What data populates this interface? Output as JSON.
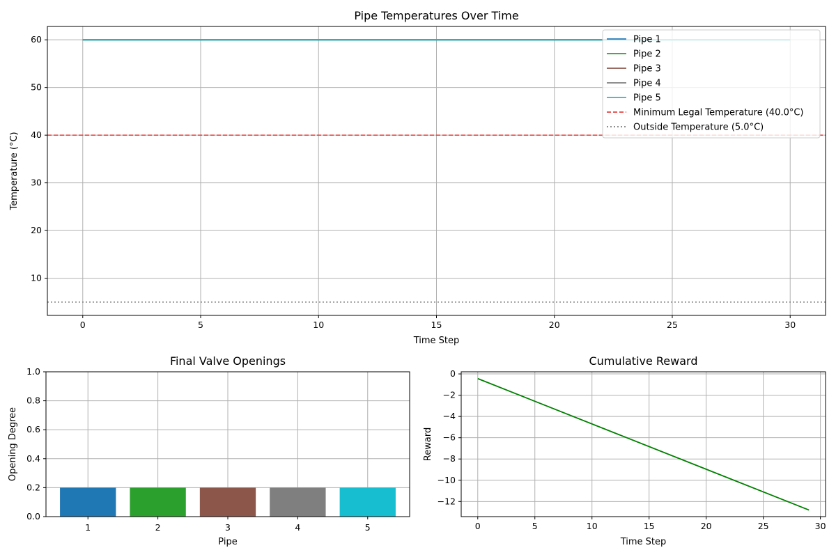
{
  "chart_data": [
    {
      "type": "line",
      "title": "Pipe Temperatures Over Time",
      "xlabel": "Time Step",
      "ylabel": "Temperature (°C)",
      "xlim": [
        -1.5,
        31.5
      ],
      "ylim": [
        2.2,
        62.8
      ],
      "xticks": [
        0,
        5,
        10,
        15,
        20,
        25,
        30
      ],
      "yticks": [
        10,
        20,
        30,
        40,
        50,
        60
      ],
      "grid": true,
      "legend_position": "top-right",
      "series": [
        {
          "name": "Pipe 1",
          "color": "#1f77b4",
          "style": "solid",
          "x": [
            0,
            30
          ],
          "y": [
            60,
            60
          ]
        },
        {
          "name": "Pipe 2",
          "color": "#2ca02c",
          "style": "solid",
          "x": [
            0,
            30
          ],
          "y": [
            60,
            60
          ]
        },
        {
          "name": "Pipe 3",
          "color": "#8c564b",
          "style": "solid",
          "x": [
            0,
            30
          ],
          "y": [
            60,
            60
          ]
        },
        {
          "name": "Pipe 4",
          "color": "#7f7f7f",
          "style": "solid",
          "x": [
            0,
            30
          ],
          "y": [
            60,
            60
          ]
        },
        {
          "name": "Pipe 5",
          "color": "#17becf",
          "style": "solid",
          "x": [
            0,
            30
          ],
          "y": [
            60,
            60
          ]
        }
      ],
      "reference_lines": [
        {
          "name": "Minimum Legal Temperature (40.0°C)",
          "y": 40.0,
          "color": "#e8413c",
          "style": "dashed"
        },
        {
          "name": "Outside Temperature (5.0°C)",
          "y": 5.0,
          "color": "#7f7f7f",
          "style": "dotted"
        }
      ]
    },
    {
      "type": "bar",
      "title": "Final Valve Openings",
      "xlabel": "Pipe",
      "ylabel": "Opening Degree",
      "categories": [
        "1",
        "2",
        "3",
        "4",
        "5"
      ],
      "values": [
        0.2,
        0.2,
        0.2,
        0.2,
        0.2
      ],
      "colors": [
        "#1f77b4",
        "#2ca02c",
        "#8c564b",
        "#7f7f7f",
        "#17becf"
      ],
      "xlim": [
        0.4,
        5.6
      ],
      "ylim": [
        0,
        1.0
      ],
      "yticks": [
        "0.0",
        "0.2",
        "0.4",
        "0.6",
        "0.8",
        "1.0"
      ],
      "grid": true
    },
    {
      "type": "line",
      "title": "Cumulative Reward",
      "xlabel": "Time Step",
      "ylabel": "Reward",
      "xlim": [
        -1.45,
        30.45
      ],
      "ylim": [
        -13.42,
        0.2
      ],
      "xticks": [
        0,
        5,
        10,
        15,
        20,
        25,
        30
      ],
      "yticks": [
        0,
        -2,
        -4,
        -6,
        -8,
        -10,
        -12
      ],
      "grid": true,
      "series": [
        {
          "color": "#008000",
          "x": [
            0,
            29
          ],
          "y": [
            -0.44,
            -12.8
          ]
        }
      ]
    }
  ]
}
